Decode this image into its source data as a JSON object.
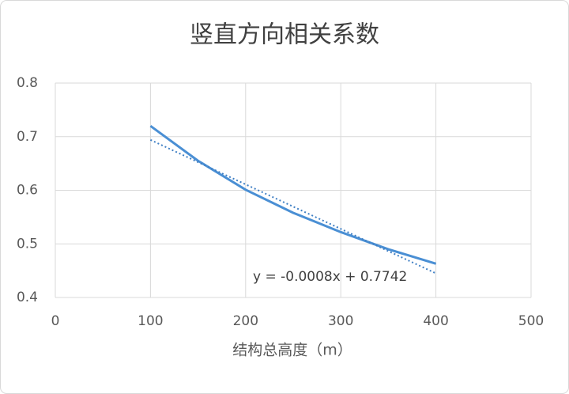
{
  "chart_data": {
    "type": "line",
    "title": "竖直方向相关系数",
    "x_label": "结构总高度（m）",
    "x": [
      100,
      150,
      200,
      250,
      300,
      350,
      400
    ],
    "series": [
      {
        "color": "#4a8fd4",
        "values": [
          0.72,
          0.655,
          0.601,
          0.558,
          0.522,
          0.49,
          0.463
        ]
      }
    ],
    "trendline": {
      "x": [
        100,
        400
      ],
      "values": [
        0.694,
        0.445
      ],
      "color": "#3f7fc4",
      "label": "y = -0.0008x + 0.7742"
    },
    "xlim": [
      0,
      500
    ],
    "xticks": [
      0,
      100,
      200,
      300,
      400,
      500
    ],
    "ylim": [
      0.4,
      0.8
    ],
    "yticks": [
      0.4,
      0.5,
      0.6,
      0.7,
      0.8
    ],
    "grid": true
  }
}
